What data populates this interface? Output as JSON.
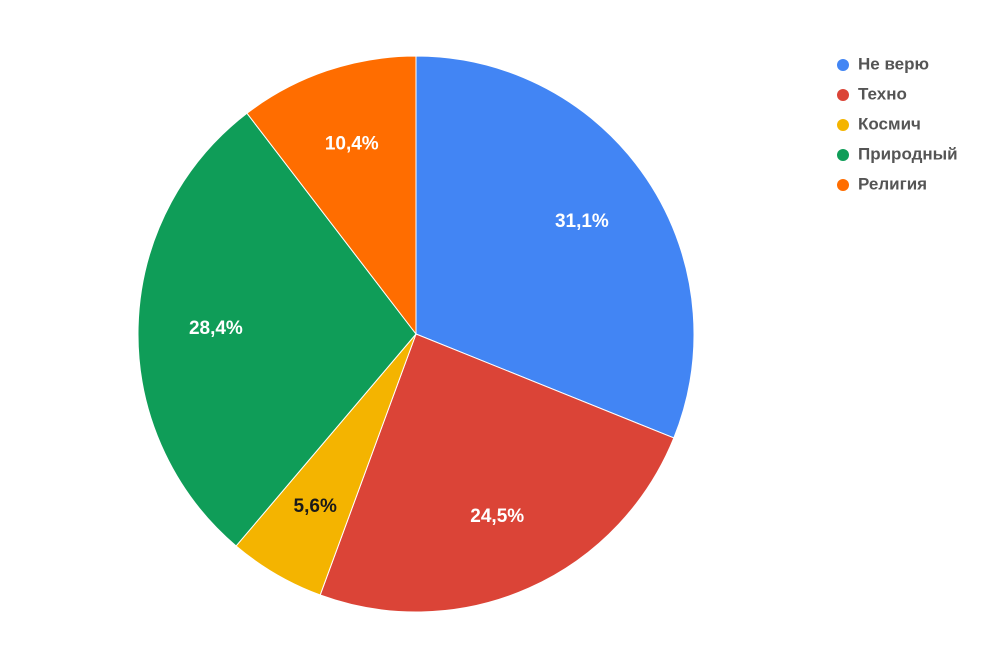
{
  "chart_data": {
    "type": "pie",
    "categories": [
      "Не верю",
      "Техно",
      "Космич",
      "Природный",
      "Религия"
    ],
    "values": [
      31.1,
      24.5,
      5.6,
      28.4,
      10.4
    ],
    "value_labels": [
      "31,1%",
      "24,5%",
      "5,6%",
      "28,4%",
      "10,4%"
    ],
    "colors": [
      "#4285f4",
      "#db4437",
      "#f4b400",
      "#0f9d58",
      "#ff6d00"
    ],
    "legend": "right"
  }
}
